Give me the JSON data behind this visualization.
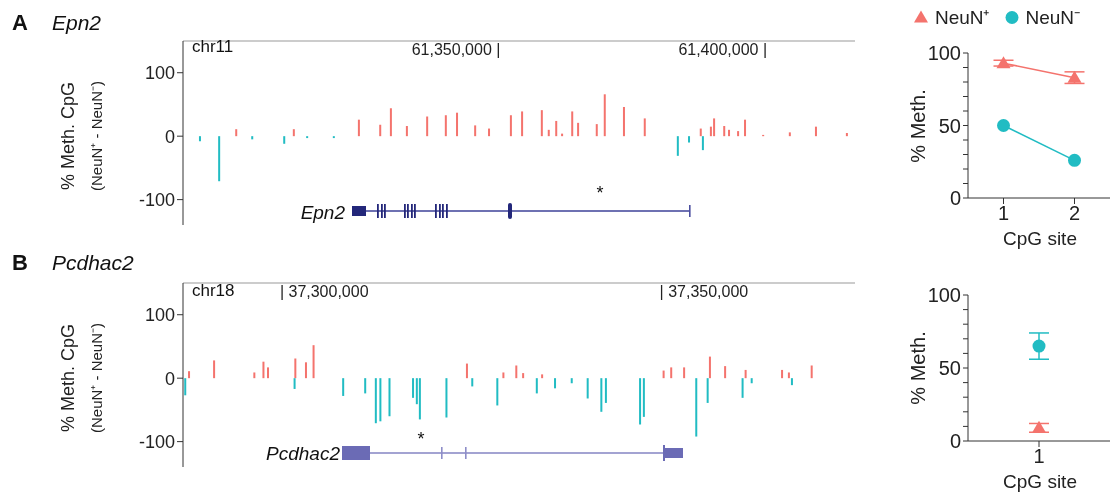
{
  "chart_data": [
    {
      "type": "bar",
      "title": "Epn2",
      "ylabel": "% Meth. CpG\n(NeuN⁺ - NeuN⁻)",
      "annotations": [
        "A",
        "chr11",
        "Epn2",
        "*"
      ],
      "xlim": [
        61298800,
        61424800
      ],
      "xticks": [
        {
          "value": 61350000,
          "label": "61,350,000 |"
        },
        {
          "value": 61400000,
          "label": "61,400,000 |"
        }
      ],
      "ylim": [
        -140,
        150
      ],
      "yticks": [
        -100,
        0,
        100
      ],
      "series": [
        {
          "color": "#f4736d",
          "x": [
            61308800,
            61319600,
            61331800,
            61335800,
            61337800,
            61340800,
            61344600,
            61348100,
            61350200,
            61353600,
            61356200,
            61360300,
            61362400,
            61366100,
            61367400,
            61368800,
            61369900,
            61371800,
            61372900,
            61376400,
            61377900,
            61381500,
            61385400,
            61395900,
            61397800,
            61398400,
            61400300,
            61401200,
            61402900,
            61404200,
            61407600,
            61412600,
            61417500,
            61423300
          ],
          "values": [
            11,
            11,
            26,
            18,
            44,
            16,
            31,
            33,
            37,
            17,
            12,
            33,
            39,
            41,
            10,
            24,
            4,
            39,
            21,
            19,
            66,
            46,
            28,
            12,
            15,
            28,
            16,
            10,
            8,
            26,
            2,
            6,
            15,
            5
          ]
        },
        {
          "color": "#21bcc3",
          "x": [
            61302000,
            61305600,
            61311800,
            61317800,
            61322100,
            61327100,
            61391600,
            61393700,
            61396300
          ],
          "values": [
            -8,
            -71,
            -5,
            -12,
            -3,
            -3,
            -31,
            -10,
            -22
          ]
        }
      ]
    },
    {
      "type": "line",
      "categories": [
        "1",
        "2"
      ],
      "xlabel": "CpG site",
      "ylabel": "% Meth.",
      "ylim": [
        0,
        100
      ],
      "yticks": [
        0,
        {
          "value": 10,
          "label": null
        },
        {
          "value": 20,
          "label": null
        },
        {
          "value": 30,
          "label": null
        },
        {
          "value": 40,
          "label": null
        },
        50,
        {
          "value": 60,
          "label": null
        },
        {
          "value": 70,
          "label": null
        },
        {
          "value": 80,
          "label": null
        },
        {
          "value": 90,
          "label": null
        },
        100
      ],
      "legend": "top",
      "series": [
        {
          "name": "NeuN⁺",
          "color": "#f4736d",
          "marker": "triangle",
          "values": [
            93,
            83
          ],
          "errors": [
            2,
            4
          ]
        },
        {
          "name": "NeuN⁻",
          "color": "#21bcc3",
          "marker": "circle",
          "values": [
            50,
            26
          ]
        }
      ]
    },
    {
      "type": "bar",
      "title": "Pcdhac2",
      "ylabel": "% Meth. CpG\n(NeuN⁺ - NeuN⁻)",
      "annotations": [
        "B",
        "chr18",
        "Pcdhac2",
        "*"
      ],
      "xlim": [
        37281400,
        37369900
      ],
      "xticks": [
        {
          "value": 37300000,
          "label": "| 37,300,000"
        },
        {
          "value": 37350000,
          "label": "| 37,350,000"
        }
      ],
      "ylim": [
        -140,
        150
      ],
      "yticks": [
        -100,
        0,
        100
      ],
      "series": [
        {
          "color": "#f4736d",
          "x": [
            37282200,
            37285500,
            37290800,
            37292000,
            37292600,
            37296200,
            37297600,
            37298600,
            37318800,
            37323600,
            37325300,
            37326200,
            37328700,
            37344700,
            37345700,
            37347400,
            37350800,
            37352800,
            37355500,
            37360300,
            37361200,
            37364200
          ],
          "values": [
            11,
            28,
            9,
            26,
            17,
            31,
            25,
            52,
            23,
            9,
            20,
            8,
            6,
            12,
            17,
            17,
            34,
            19,
            13,
            13,
            9,
            20
          ]
        },
        {
          "color": "#21bcc3",
          "x": [
            37281700,
            37296100,
            37302500,
            37305400,
            37306800,
            37307400,
            37308600,
            37311700,
            37312200,
            37312600,
            37316100,
            37319500,
            37322800,
            37328000,
            37330400,
            37332600,
            37334700,
            37336500,
            37337100,
            37341600,
            37342100,
            37349000,
            37350500,
            37355100,
            37356300,
            37361600
          ],
          "values": [
            -27,
            -17,
            -28,
            -24,
            -71,
            -68,
            -60,
            -31,
            -41,
            -65,
            -62,
            -13,
            -43,
            -24,
            -16,
            -8,
            -32,
            -53,
            -39,
            -73,
            -61,
            -92,
            -39,
            -31,
            -8,
            -11
          ]
        }
      ]
    },
    {
      "type": "scatter",
      "categories": [
        "1"
      ],
      "xlabel": "CpG site",
      "ylabel": "% Meth.",
      "ylim": [
        0,
        100
      ],
      "yticks": [
        0,
        {
          "value": 10,
          "label": null
        },
        {
          "value": 20,
          "label": null
        },
        {
          "value": 30,
          "label": null
        },
        {
          "value": 40,
          "label": null
        },
        50,
        {
          "value": 60,
          "label": null
        },
        {
          "value": 70,
          "label": null
        },
        {
          "value": 80,
          "label": null
        },
        {
          "value": 90,
          "label": null
        },
        100
      ],
      "series": [
        {
          "color": "#f4736d",
          "marker": "triangle",
          "values": [
            9
          ],
          "errors": [
            3
          ]
        },
        {
          "color": "#21bcc3",
          "marker": "circle",
          "values": [
            65
          ],
          "errors": [
            9
          ]
        }
      ]
    }
  ]
}
